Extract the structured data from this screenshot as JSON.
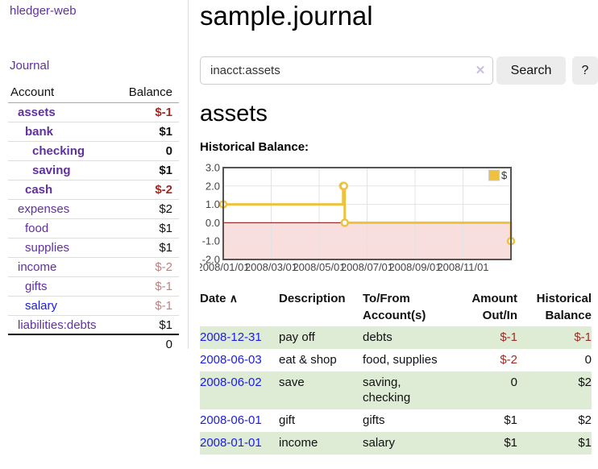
{
  "colors": {
    "accent_purple": "#6130a0",
    "link_blue": "#1b1be6",
    "neg_strong": "#9e2b23",
    "neg_soft": "#c08080",
    "row_green": "#deecd6",
    "chart_line": "#edc240",
    "chart_neg_fill": "#f9dede",
    "chart_zero_line": "#a03030",
    "chart_border": "#545454",
    "chart_grid": "#e3e3e3"
  },
  "app": {
    "brand": "hledger-web",
    "nav_journal": "Journal"
  },
  "sidebar": {
    "header": {
      "account": "Account",
      "balance": "Balance"
    },
    "rows": [
      {
        "label": "assets",
        "balance": "$-1",
        "indent": 1,
        "bold": true,
        "tone": "neg-strong",
        "link": "purple"
      },
      {
        "label": "bank",
        "balance": "$1",
        "indent": 2,
        "bold": true,
        "tone": "normal",
        "link": "purple"
      },
      {
        "label": "checking",
        "balance": "0",
        "indent": 3,
        "bold": true,
        "tone": "normal",
        "link": "purple"
      },
      {
        "label": "saving",
        "balance": "$1",
        "indent": 3,
        "bold": true,
        "tone": "normal",
        "link": "purple"
      },
      {
        "label": "cash",
        "balance": "$-2",
        "indent": 2,
        "bold": true,
        "tone": "neg-strong",
        "link": "purple"
      },
      {
        "label": "expenses",
        "balance": "$2",
        "indent": 1,
        "bold": false,
        "tone": "normal",
        "link": "purple"
      },
      {
        "label": "food",
        "balance": "$1",
        "indent": 2,
        "bold": false,
        "tone": "normal",
        "link": "purple"
      },
      {
        "label": "supplies",
        "balance": "$1",
        "indent": 2,
        "bold": false,
        "tone": "normal",
        "link": "purple"
      },
      {
        "label": "income",
        "balance": "$-2",
        "indent": 1,
        "bold": false,
        "tone": "neg-soft",
        "link": "purple"
      },
      {
        "label": "gifts",
        "balance": "$-1",
        "indent": 2,
        "bold": false,
        "tone": "neg-soft",
        "link": "purple"
      },
      {
        "label": "salary",
        "balance": "$-1",
        "indent": 2,
        "bold": false,
        "tone": "neg-soft",
        "link": "blue"
      },
      {
        "label": "liabilities:debts",
        "balance": "$1",
        "indent": 1,
        "bold": false,
        "tone": "normal",
        "link": "purple"
      }
    ],
    "total": "0"
  },
  "header": {
    "title": "sample.journal"
  },
  "search": {
    "value": "inacct:assets",
    "clear_icon": "✕",
    "button_label": "Search",
    "help_label": "?"
  },
  "account_page": {
    "title": "assets",
    "chart_label": "Historical Balance:"
  },
  "chart_data": {
    "type": "line",
    "title": "Historical Balance",
    "legend": "$",
    "legend_position": "top-right",
    "grid": true,
    "step": true,
    "x_start": "2008-01-01",
    "x_end": "2009-01-01",
    "ylim": [
      -2,
      3
    ],
    "y_ticks": [
      {
        "v": 3,
        "label": "3.0"
      },
      {
        "v": 2,
        "label": "2.0"
      },
      {
        "v": 1,
        "label": "1.0"
      },
      {
        "v": 0,
        "label": "0.0"
      },
      {
        "v": -1,
        "label": "-1.0"
      },
      {
        "v": -2,
        "label": "-2.0"
      }
    ],
    "x_ticks": [
      {
        "month": 0,
        "label": "2008/01/01"
      },
      {
        "month": 2,
        "label": "2008/03/01"
      },
      {
        "month": 4,
        "label": "2008/05/01"
      },
      {
        "month": 6,
        "label": "2008/07/01"
      },
      {
        "month": 8,
        "label": "2008/09/01"
      },
      {
        "month": 10,
        "label": "2008/11/01"
      }
    ],
    "series": [
      {
        "name": "$",
        "points": [
          {
            "date": "2008-01-01",
            "value": 1
          },
          {
            "date": "2008-06-01",
            "value": 2
          },
          {
            "date": "2008-06-02",
            "value": 2
          },
          {
            "date": "2008-06-03",
            "value": 0
          },
          {
            "date": "2008-12-31",
            "value": -1
          }
        ]
      }
    ]
  },
  "register": {
    "headers": {
      "date": "Date",
      "sort_icon": "∧",
      "description": "Description",
      "accounts": "To/From Account(s)",
      "amount": "Amount Out/In",
      "balance": "Historical Balance"
    },
    "rows": [
      {
        "date": "2008-12-31",
        "description": "pay off",
        "accounts": "debts",
        "amount": "$-1",
        "amount_neg": true,
        "balance": "$-1",
        "balance_neg": true
      },
      {
        "date": "2008-06-03",
        "description": "eat & shop",
        "accounts": "food, supplies",
        "amount": "$-2",
        "amount_neg": true,
        "balance": "0",
        "balance_neg": false
      },
      {
        "date": "2008-06-02",
        "description": "save",
        "accounts": "saving, checking",
        "amount": "0",
        "amount_neg": false,
        "balance": "$2",
        "balance_neg": false
      },
      {
        "date": "2008-06-01",
        "description": "gift",
        "accounts": "gifts",
        "amount": "$1",
        "amount_neg": false,
        "balance": "$2",
        "balance_neg": false
      },
      {
        "date": "2008-01-01",
        "description": "income",
        "accounts": "salary",
        "amount": "$1",
        "amount_neg": false,
        "balance": "$1",
        "balance_neg": false
      }
    ]
  }
}
